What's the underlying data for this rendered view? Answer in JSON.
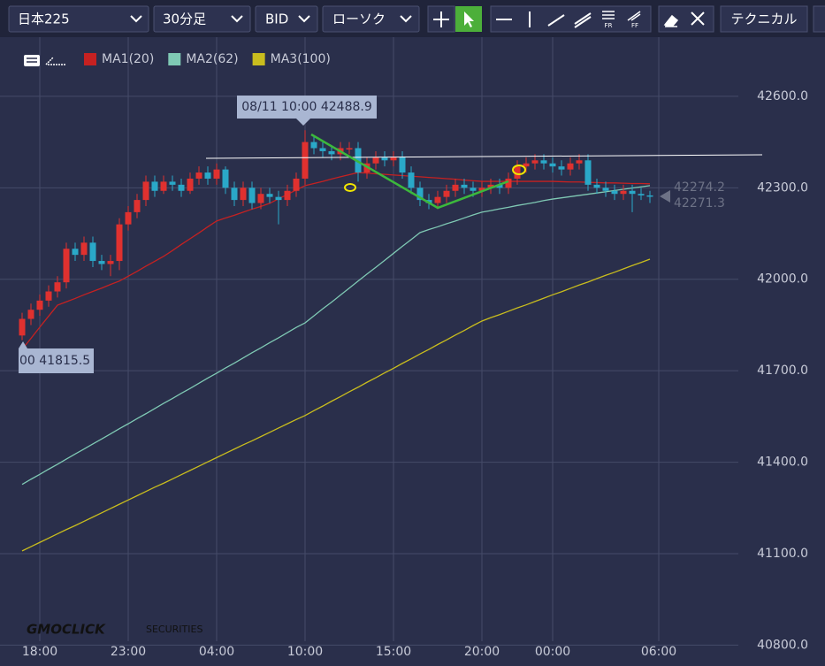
{
  "ui": {
    "toolbar": {
      "symbol": "日本225",
      "timeframe": "30分足",
      "price_type": "BID",
      "chart_style": "ローソク",
      "technical": "テクニカル",
      "icons": [
        "FR",
        "FF"
      ]
    },
    "watermark": {
      "brand": "GMOCLICK",
      "suffix": "SECURITIES"
    }
  },
  "chart_data": {
    "type": "candlestick",
    "categories": [
      null,
      null,
      "18:00",
      null,
      null,
      null,
      null,
      null,
      null,
      null,
      null,
      null,
      "23:00",
      null,
      null,
      null,
      null,
      null,
      null,
      null,
      null,
      null,
      "04:00",
      null,
      null,
      null,
      null,
      null,
      null,
      null,
      null,
      null,
      "10:00",
      null,
      null,
      null,
      null,
      null,
      null,
      null,
      null,
      null,
      "15:00",
      null,
      null,
      null,
      null,
      null,
      null,
      null,
      null,
      null,
      "20:00",
      null,
      null,
      null,
      null,
      null,
      null,
      null,
      "00:00",
      null,
      null,
      null,
      null,
      null,
      null,
      null,
      null,
      null,
      null,
      null,
      "06:00"
    ],
    "open": [
      41815.5,
      41870,
      41900,
      41930,
      41960,
      41990,
      42100,
      42080,
      42120,
      42060,
      42050,
      42060,
      42180,
      42220,
      42260,
      42320,
      42290,
      42320,
      42310,
      42290,
      42330,
      42350,
      42330,
      42360,
      42300,
      42260,
      42300,
      42250,
      42280,
      42270,
      42260,
      42290,
      42330,
      42450,
      42430,
      42420,
      42410,
      42430,
      42430,
      42350,
      42380,
      42400,
      42390,
      42400,
      42350,
      42300,
      42260,
      42250,
      42270,
      42290,
      42310,
      42300,
      42290,
      42300,
      42310,
      42300,
      42330,
      42370,
      42380,
      42390,
      42380,
      42370,
      42360,
      42380,
      42390,
      42310,
      42300,
      42290,
      42280,
      42290,
      42280,
      42275,
      null
    ],
    "high": [
      41890,
      41920,
      41950,
      41980,
      42010,
      42120,
      42120,
      42140,
      42140,
      42080,
      42080,
      42200,
      42240,
      42280,
      42340,
      42340,
      42340,
      42340,
      42330,
      42350,
      42370,
      42370,
      42380,
      42370,
      42320,
      42320,
      42320,
      42300,
      42300,
      42290,
      42310,
      42350,
      42488.9,
      42470,
      42450,
      42440,
      42450,
      42450,
      42450,
      42400,
      42420,
      42420,
      42420,
      42420,
      42370,
      42320,
      42280,
      42290,
      42310,
      42330,
      42330,
      42320,
      42320,
      42330,
      42330,
      42350,
      42390,
      42400,
      42410,
      42410,
      42400,
      42390,
      42400,
      42410,
      42410,
      42330,
      42320,
      42310,
      42310,
      42310,
      42300,
      42290,
      null
    ],
    "low": [
      41800,
      41850,
      41880,
      41910,
      41940,
      41970,
      42060,
      42060,
      42040,
      42030,
      42010,
      42030,
      42160,
      42200,
      42240,
      42270,
      42280,
      42290,
      42270,
      42280,
      42310,
      42310,
      42310,
      42280,
      42240,
      42240,
      42230,
      42230,
      42250,
      42180,
      42240,
      42270,
      42310,
      42410,
      42400,
      42390,
      42390,
      42410,
      42320,
      42330,
      42360,
      42370,
      42370,
      42330,
      42280,
      42240,
      42230,
      42230,
      42250,
      42270,
      42280,
      42270,
      42270,
      42280,
      42280,
      42280,
      42310,
      42350,
      42360,
      42360,
      42350,
      42340,
      42340,
      42360,
      42290,
      42280,
      42270,
      42260,
      42260,
      42220,
      42260,
      42250,
      null
    ],
    "close": [
      41870,
      41900,
      41930,
      41960,
      41990,
      42100,
      42080,
      42120,
      42060,
      42050,
      42060,
      42180,
      42220,
      42260,
      42320,
      42290,
      42320,
      42310,
      42290,
      42330,
      42350,
      42330,
      42360,
      42300,
      42260,
      42300,
      42250,
      42280,
      42270,
      42260,
      42290,
      42330,
      42450,
      42430,
      42420,
      42410,
      42430,
      42430,
      42350,
      42380,
      42400,
      42390,
      42400,
      42350,
      42300,
      42260,
      42250,
      42270,
      42290,
      42310,
      42300,
      42290,
      42300,
      42310,
      42300,
      42330,
      42370,
      42380,
      42390,
      42380,
      42370,
      42360,
      42380,
      42390,
      42310,
      42300,
      42290,
      42280,
      42290,
      42280,
      42275,
      42271.3,
      null
    ],
    "up_color": "#e0312f",
    "down_color": "#2aa8c8",
    "series": [
      {
        "name": "MA1(20)",
        "color": "#c62121",
        "values": [
          41770,
          41806,
          41843,
          41879,
          41915,
          41926,
          41937,
          41949,
          41960,
          41971,
          41983,
          41994,
          42010,
          42026,
          42043,
          42059,
          42075,
          42094,
          42114,
          42133,
          42152,
          42172,
          42191,
          42201,
          42210,
          42220,
          42230,
          42239,
          42249,
          42264,
          42278,
          42293,
          42307,
          42314,
          42321,
          42329,
          42336,
          42343,
          42350,
          42348,
          42346,
          42344,
          42342,
          42340,
          42338,
          42336,
          42334,
          42332,
          42330,
          42328,
          42325,
          42323,
          42321,
          42321,
          42321,
          42321,
          42321,
          42321,
          42321,
          42321,
          42321,
          42320,
          42319,
          42319,
          42318,
          42317,
          42316,
          42316,
          42315,
          42314,
          42314,
          42313,
          null
        ]
      },
      {
        "name": "MA2(62)",
        "color": "#7fc9b4",
        "values": [
          41327,
          41344,
          41360,
          41377,
          41393,
          41410,
          41427,
          41443,
          41460,
          41476,
          41493,
          41510,
          41526,
          41543,
          41559,
          41576,
          41593,
          41609,
          41626,
          41642,
          41659,
          41676,
          41692,
          41709,
          41725,
          41742,
          41759,
          41775,
          41792,
          41808,
          41825,
          41842,
          41857,
          41880,
          41903,
          41925,
          41948,
          41971,
          41994,
          42017,
          42039,
          42062,
          42085,
          42108,
          42130,
          42153,
          42163,
          42172,
          42182,
          42191,
          42201,
          42211,
          42220,
          42225,
          42231,
          42236,
          42242,
          42247,
          42252,
          42258,
          42263,
          42267,
          42271,
          42275,
          42279,
          42283,
          42287,
          42291,
          42295,
          42299,
          42303,
          42307,
          null
        ]
      },
      {
        "name": "MA3(100)",
        "color": "#c9bd1e",
        "values": [
          41109,
          41123,
          41137,
          41151,
          41165,
          41179,
          41192,
          41206,
          41220,
          41234,
          41248,
          41262,
          41276,
          41290,
          41304,
          41318,
          41331,
          41345,
          41359,
          41373,
          41387,
          41401,
          41415,
          41429,
          41443,
          41457,
          41470,
          41484,
          41498,
          41512,
          41526,
          41540,
          41553,
          41569,
          41584,
          41600,
          41615,
          41631,
          41646,
          41662,
          41677,
          41693,
          41708,
          41724,
          41739,
          41755,
          41770,
          41786,
          41801,
          41817,
          41832,
          41848,
          41863,
          41874,
          41884,
          41895,
          41906,
          41916,
          41927,
          41938,
          41949,
          41959,
          41970,
          41981,
          41991,
          42002,
          42013,
          42023,
          42034,
          42045,
          42055,
          42066,
          null
        ]
      }
    ],
    "ylim": [
      40800,
      42790
    ],
    "yticks": [
      {
        "value": 40800,
        "label": "40800.0"
      },
      {
        "value": 41100,
        "label": "41100.0"
      },
      {
        "value": 41400,
        "label": "41400.0"
      },
      {
        "value": 41700,
        "label": "41700.0"
      },
      {
        "value": 42000,
        "label": "42000.0"
      },
      {
        "value": 42300,
        "label": "42300.0"
      },
      {
        "value": 42600,
        "label": "42600.0"
      }
    ],
    "grid": true,
    "annotations": {
      "tooltip": "08/11 10:00 42488.9",
      "start_label": "00 41815.5",
      "price_labels": [
        "42274.2",
        "42271.3"
      ]
    }
  }
}
